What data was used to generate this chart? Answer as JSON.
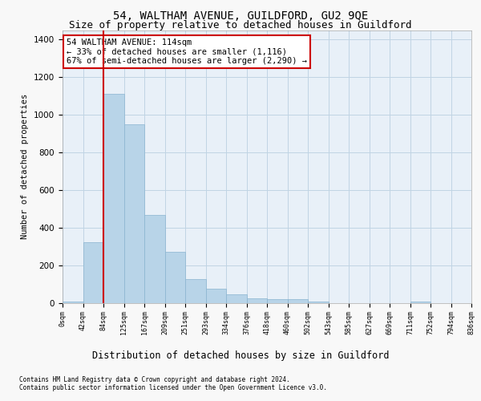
{
  "title": "54, WALTHAM AVENUE, GUILDFORD, GU2 9QE",
  "subtitle": "Size of property relative to detached houses in Guildford",
  "xlabel": "Distribution of detached houses by size in Guildford",
  "ylabel": "Number of detached properties",
  "bar_values": [
    5,
    320,
    1110,
    950,
    465,
    270,
    125,
    75,
    45,
    25,
    20,
    20,
    5,
    0,
    0,
    0,
    0,
    5,
    0,
    0
  ],
  "categories": [
    "0sqm",
    "42sqm",
    "84sqm",
    "125sqm",
    "167sqm",
    "209sqm",
    "251sqm",
    "293sqm",
    "334sqm",
    "376sqm",
    "418sqm",
    "460sqm",
    "502sqm",
    "543sqm",
    "585sqm",
    "627sqm",
    "669sqm",
    "711sqm",
    "752sqm",
    "794sqm",
    "836sqm"
  ],
  "bar_color": "#b8d4e8",
  "bar_edge_color": "#8ab4d0",
  "grid_color": "#c0d4e4",
  "bg_color": "#e8f0f8",
  "annotation_text": "54 WALTHAM AVENUE: 114sqm\n← 33% of detached houses are smaller (1,116)\n67% of semi-detached houses are larger (2,290) →",
  "annotation_box_color": "#ffffff",
  "annotation_border_color": "#cc0000",
  "vline_x": 2,
  "vline_color": "#cc0000",
  "ylim": [
    0,
    1450
  ],
  "yticks": [
    0,
    200,
    400,
    600,
    800,
    1000,
    1200,
    1400
  ],
  "footer_line1": "Contains HM Land Registry data © Crown copyright and database right 2024.",
  "footer_line2": "Contains public sector information licensed under the Open Government Licence v3.0.",
  "title_fontsize": 10,
  "subtitle_fontsize": 9,
  "xlabel_fontsize": 8.5,
  "ylabel_fontsize": 7.5
}
